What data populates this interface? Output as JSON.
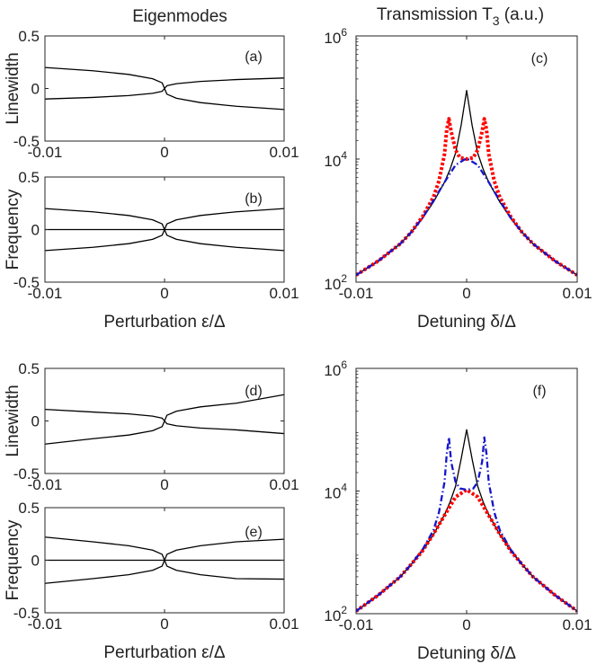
{
  "column_titles": {
    "left": "Eigenmodes",
    "right": "Transmission T",
    "right_sub": "3",
    "right_unit": " (a.u.)"
  },
  "chart_data": [
    {
      "id": "a",
      "type": "line",
      "panel_label": "(a)",
      "ylabel": "Linewidth",
      "xlabel": "",
      "xlim": [
        -0.01,
        0.01
      ],
      "ylim": [
        -0.5,
        0.5
      ],
      "xticks": [
        "-0.01",
        "0",
        "0.01"
      ],
      "yticks": [
        "0.5",
        "0",
        "-0.5"
      ],
      "xtick_values": [
        -0.01,
        0,
        0.01
      ],
      "ytick_values": [
        0.5,
        0,
        -0.5
      ],
      "series": [
        {
          "name": "left upper",
          "x": [
            -0.01,
            -0.006,
            -0.003,
            -0.001,
            -0.0002,
            0
          ],
          "y": [
            0.2,
            0.169,
            0.134,
            0.093,
            0.054,
            0
          ]
        },
        {
          "name": "left lower",
          "x": [
            -0.01,
            -0.006,
            -0.003,
            -0.001,
            -0.0002,
            0
          ],
          "y": [
            -0.1,
            -0.085,
            -0.067,
            -0.046,
            -0.027,
            0
          ]
        },
        {
          "name": "right upper",
          "x": [
            0,
            0.0002,
            0.001,
            0.003,
            0.006,
            0.01
          ],
          "y": [
            0,
            0.027,
            0.046,
            0.067,
            0.085,
            0.1
          ]
        },
        {
          "name": "right lower",
          "x": [
            0,
            0.0002,
            0.001,
            0.003,
            0.006,
            0.01
          ],
          "y": [
            0,
            -0.054,
            -0.093,
            -0.134,
            -0.169,
            -0.2
          ]
        }
      ]
    },
    {
      "id": "b",
      "type": "line",
      "panel_label": "(b)",
      "ylabel": "Frequency",
      "xlabel": "Perturbation ε/Δ",
      "xlim": [
        -0.01,
        0.01
      ],
      "ylim": [
        -0.5,
        0.5
      ],
      "xticks": [
        "-0.01",
        "0",
        "0.01"
      ],
      "yticks": [
        "0.5",
        "0",
        "-0.5"
      ],
      "xtick_values": [
        -0.01,
        0,
        0.01
      ],
      "ytick_values": [
        0.5,
        0,
        -0.5
      ],
      "series": [
        {
          "name": "upper",
          "x": [
            -0.01,
            -0.006,
            -0.003,
            -0.001,
            -0.0002,
            0,
            0.0002,
            0.001,
            0.003,
            0.006,
            0.01
          ],
          "y": [
            0.2,
            0.169,
            0.134,
            0.093,
            0.054,
            0,
            0.054,
            0.093,
            0.134,
            0.169,
            0.2
          ]
        },
        {
          "name": "middle",
          "x": [
            -0.01,
            0.01
          ],
          "y": [
            0,
            0
          ]
        },
        {
          "name": "lower",
          "x": [
            -0.01,
            -0.006,
            -0.003,
            -0.001,
            -0.0002,
            0,
            0.0002,
            0.001,
            0.003,
            0.006,
            0.01
          ],
          "y": [
            -0.2,
            -0.169,
            -0.134,
            -0.093,
            -0.054,
            0,
            -0.054,
            -0.093,
            -0.134,
            -0.169,
            -0.2
          ]
        }
      ]
    },
    {
      "id": "c",
      "type": "line",
      "panel_label": "(c)",
      "ylabel": "",
      "xlabel": "Detuning δ/Δ",
      "xlim": [
        -0.01,
        0.01
      ],
      "ylim": [
        100,
        1000000
      ],
      "yscale": "log",
      "xticks": [
        "-0.01",
        "0",
        "0.01"
      ],
      "xtick_values": [
        -0.01,
        0,
        0.01
      ],
      "yticks": [
        {
          "base": "10",
          "exp": "6",
          "value": 1000000
        },
        {
          "base": "10",
          "exp": "4",
          "value": 10000
        },
        {
          "base": "10",
          "exp": "2",
          "value": 100
        }
      ],
      "series": [
        {
          "name": "black solid",
          "color": "#000000",
          "style": "solid",
          "x": [
            -0.01,
            -0.008,
            -0.006,
            -0.005,
            -0.004,
            -0.003,
            -0.002,
            -0.0015,
            -0.001,
            -0.0005,
            0,
            0.0005,
            0.001,
            0.0015,
            0.002,
            0.003,
            0.004,
            0.005,
            0.006,
            0.008,
            0.01
          ],
          "y": [
            130,
            220,
            420,
            650,
            1080,
            2000,
            4200,
            6800,
            12500,
            35000,
            130000,
            35000,
            12500,
            6800,
            4200,
            2000,
            1080,
            650,
            420,
            220,
            130
          ]
        },
        {
          "name": "red dotted",
          "color": "#ff0000",
          "style": "dotted",
          "x": [
            -0.01,
            -0.008,
            -0.006,
            -0.005,
            -0.004,
            -0.003,
            -0.0025,
            -0.002,
            -0.0018,
            -0.0016,
            -0.0014,
            -0.001,
            -0.0006,
            0,
            0.0006,
            0.001,
            0.0014,
            0.0016,
            0.0018,
            0.002,
            0.0025,
            0.003,
            0.004,
            0.005,
            0.006,
            0.008,
            0.01
          ],
          "y": [
            130,
            220,
            420,
            650,
            1150,
            2400,
            4400,
            12000,
            30000,
            45000,
            28000,
            14000,
            10500,
            10000,
            10500,
            14000,
            28000,
            45000,
            30000,
            12000,
            4400,
            2400,
            1150,
            650,
            420,
            220,
            130
          ]
        },
        {
          "name": "blue dash-dot",
          "color": "#1515c8",
          "style": "dashdot",
          "x": [
            -0.01,
            -0.008,
            -0.006,
            -0.005,
            -0.004,
            -0.003,
            -0.002,
            -0.001,
            0,
            0.001,
            0.002,
            0.003,
            0.004,
            0.005,
            0.006,
            0.008,
            0.01
          ],
          "y": [
            130,
            220,
            420,
            650,
            1100,
            2100,
            4200,
            8000,
            10300,
            8000,
            4200,
            2100,
            1100,
            650,
            420,
            220,
            130
          ]
        }
      ]
    },
    {
      "id": "d",
      "type": "line",
      "panel_label": "(d)",
      "ylabel": "Linewidth",
      "xlabel": "",
      "xlim": [
        -0.01,
        0.01
      ],
      "ylim": [
        -0.5,
        0.5
      ],
      "xticks": [
        "-0.01",
        "0",
        "0.01"
      ],
      "yticks": [
        "0.5",
        "0",
        "-0.5"
      ],
      "xtick_values": [
        -0.01,
        0,
        0.01
      ],
      "ytick_values": [
        0.5,
        0,
        -0.5
      ],
      "series": [
        {
          "name": "left upper",
          "x": [
            -0.01,
            -0.006,
            -0.003,
            -0.001,
            -0.0002,
            0
          ],
          "y": [
            0.11,
            0.085,
            0.067,
            0.046,
            0.027,
            0
          ]
        },
        {
          "name": "left lower",
          "x": [
            -0.01,
            -0.006,
            -0.003,
            -0.001,
            -0.0002,
            0
          ],
          "y": [
            -0.22,
            -0.169,
            -0.134,
            -0.093,
            -0.054,
            0
          ]
        },
        {
          "name": "right upper",
          "x": [
            0,
            0.0002,
            0.001,
            0.003,
            0.006,
            0.01
          ],
          "y": [
            0,
            0.054,
            0.093,
            0.134,
            0.169,
            0.25
          ]
        },
        {
          "name": "right lower",
          "x": [
            0,
            0.0002,
            0.001,
            0.003,
            0.006,
            0.01
          ],
          "y": [
            0,
            -0.027,
            -0.046,
            -0.067,
            -0.085,
            -0.12
          ]
        }
      ]
    },
    {
      "id": "e",
      "type": "line",
      "panel_label": "(e)",
      "ylabel": "Frequency",
      "xlabel": "Perturbation ε/Δ",
      "xlim": [
        -0.01,
        0.01
      ],
      "ylim": [
        -0.5,
        0.5
      ],
      "xticks": [
        "-0.01",
        "0",
        "0.01"
      ],
      "yticks": [
        "0.5",
        "0",
        "-0.5"
      ],
      "xtick_values": [
        -0.01,
        0,
        0.01
      ],
      "ytick_values": [
        0.5,
        0,
        -0.5
      ],
      "series": [
        {
          "name": "upper",
          "x": [
            -0.01,
            -0.006,
            -0.003,
            -0.001,
            -0.0002,
            0,
            0.0002,
            0.001,
            0.003,
            0.006,
            0.01
          ],
          "y": [
            0.22,
            0.175,
            0.138,
            0.096,
            0.056,
            0,
            0.056,
            0.096,
            0.138,
            0.175,
            0.2
          ]
        },
        {
          "name": "middle",
          "x": [
            -0.01,
            0.01
          ],
          "y": [
            0,
            0
          ]
        },
        {
          "name": "lower",
          "x": [
            -0.01,
            -0.006,
            -0.003,
            -0.001,
            -0.0002,
            0,
            0.0002,
            0.001,
            0.003,
            0.006,
            0.01
          ],
          "y": [
            -0.22,
            -0.175,
            -0.138,
            -0.096,
            -0.056,
            0,
            -0.056,
            -0.096,
            -0.138,
            -0.175,
            -0.18
          ]
        }
      ]
    },
    {
      "id": "f",
      "type": "line",
      "panel_label": "(f)",
      "ylabel": "",
      "xlabel": "Detuning δ/Δ",
      "xlim": [
        -0.01,
        0.01
      ],
      "ylim": [
        100,
        1000000
      ],
      "yscale": "log",
      "xticks": [
        "-0.01",
        "0",
        "0.01"
      ],
      "xtick_values": [
        -0.01,
        0,
        0.01
      ],
      "yticks": [
        {
          "base": "10",
          "exp": "6",
          "value": 1000000
        },
        {
          "base": "10",
          "exp": "4",
          "value": 10000
        },
        {
          "base": "10",
          "exp": "2",
          "value": 100
        }
      ],
      "series": [
        {
          "name": "black solid",
          "color": "#000000",
          "style": "solid",
          "x": [
            -0.01,
            -0.008,
            -0.006,
            -0.005,
            -0.004,
            -0.003,
            -0.002,
            -0.0015,
            -0.001,
            -0.0005,
            0,
            0.0005,
            0.001,
            0.0015,
            0.002,
            0.003,
            0.004,
            0.005,
            0.006,
            0.008,
            0.01
          ],
          "y": [
            110,
            200,
            400,
            640,
            1050,
            1950,
            4100,
            6600,
            12000,
            33000,
            100000,
            33000,
            12000,
            6600,
            4100,
            1950,
            1050,
            640,
            400,
            200,
            110
          ]
        },
        {
          "name": "red dotted",
          "color": "#ff0000",
          "style": "dotted",
          "x": [
            -0.01,
            -0.008,
            -0.006,
            -0.005,
            -0.004,
            -0.003,
            -0.002,
            -0.001,
            0,
            0.001,
            0.002,
            0.003,
            0.004,
            0.005,
            0.006,
            0.008,
            0.01
          ],
          "y": [
            110,
            200,
            400,
            640,
            1050,
            2000,
            4000,
            8000,
            10500,
            8000,
            4000,
            2000,
            1050,
            640,
            400,
            200,
            110
          ]
        },
        {
          "name": "blue dash-dot",
          "color": "#1515c8",
          "style": "dashdot",
          "x": [
            -0.01,
            -0.008,
            -0.006,
            -0.005,
            -0.004,
            -0.003,
            -0.0025,
            -0.002,
            -0.0018,
            -0.0016,
            -0.0014,
            -0.001,
            -0.0006,
            0,
            0.0006,
            0.001,
            0.0014,
            0.0016,
            0.0018,
            0.002,
            0.0025,
            0.003,
            0.004,
            0.005,
            0.006,
            0.008,
            0.01
          ],
          "y": [
            110,
            200,
            400,
            640,
            1100,
            2300,
            4500,
            14000,
            40000,
            75000,
            30000,
            14000,
            11000,
            10500,
            11000,
            14000,
            30000,
            75000,
            40000,
            14000,
            4500,
            2300,
            1100,
            640,
            400,
            200,
            110
          ]
        }
      ]
    }
  ]
}
